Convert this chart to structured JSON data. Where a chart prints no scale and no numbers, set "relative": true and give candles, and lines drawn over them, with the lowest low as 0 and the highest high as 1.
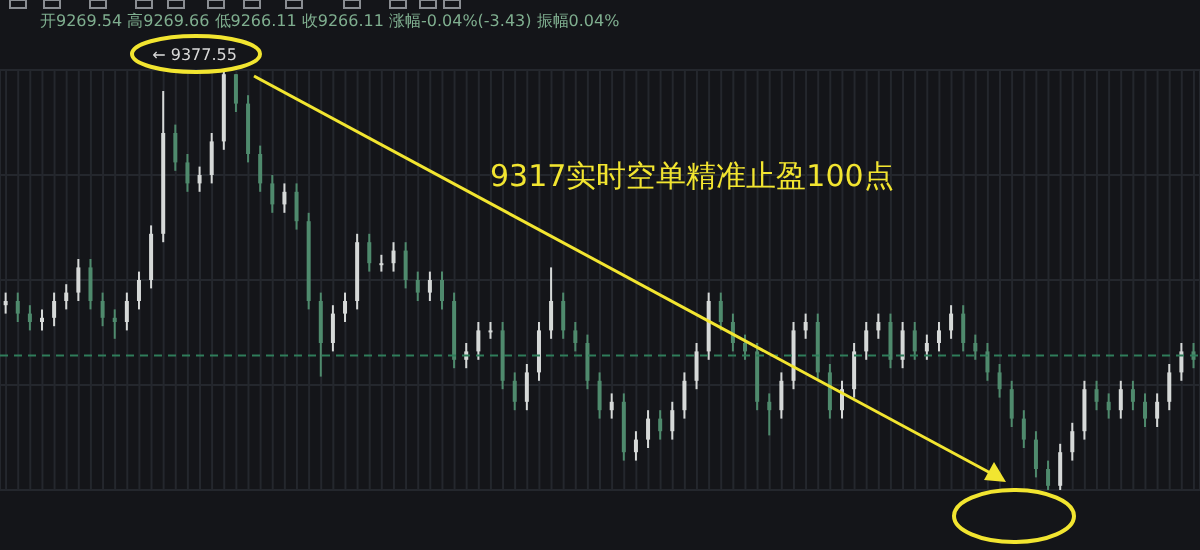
{
  "chart_data": {
    "type": "candlestick",
    "relative": true,
    "subtitle": "开9269.54 高9269.66 低9266.11 收9266.11 涨幅-0.04%(-3.43) 振幅0.04%",
    "annotations": [
      "← 9377.55",
      "9317实时空单精准止盈100点"
    ],
    "colors": [
      "#d6d9d8",
      "#4f8a6d",
      "#4f8a6d",
      "#d6d9d8",
      "#d6d9d8",
      "#d6d9d8",
      "#d6d9d8",
      "#4f8a6d",
      "#4f8a6d",
      "#4f8a6d",
      "#d6d9d8",
      "#d6d9d8",
      "#d6d9d8",
      "#d6d9d8",
      "#4f8a6d",
      "#4f8a6d",
      "#d6d9d8",
      "#d6d9d8",
      "#d6d9d8",
      "#4f8a6d",
      "#4f8a6d",
      "#4f8a6d",
      "#4f8a6d",
      "#d6d9d8",
      "#4f8a6d",
      "#4f8a6d",
      "#4f8a6d",
      "#d6d9d8",
      "#d6d9d8",
      "#d6d9d8",
      "#4f8a6d",
      "#d6d9d8",
      "#d6d9d8",
      "#4f8a6d",
      "#4f8a6d",
      "#d6d9d8",
      "#4f8a6d",
      "#4f8a6d",
      "#d6d9d8",
      "#d6d9d8",
      "#d6d9d8",
      "#4f8a6d",
      "#4f8a6d",
      "#d6d9d8",
      "#d6d9d8",
      "#d6d9d8",
      "#4f8a6d",
      "#4f8a6d",
      "#4f8a6d",
      "#4f8a6d",
      "#d6d9d8",
      "#4f8a6d",
      "#d6d9d8",
      "#d6d9d8",
      "#4f8a6d",
      "#d6d9d8",
      "#d6d9d8",
      "#d6d9d8",
      "#d6d9d8",
      "#4f8a6d",
      "#4f8a6d",
      "#4f8a6d",
      "#4f8a6d",
      "#4f8a6d",
      "#d6d9d8",
      "#d6d9d8",
      "#d6d9d8",
      "#4f8a6d",
      "#4f8a6d",
      "#d6d9d8",
      "#d6d9d8",
      "#d6d9d8",
      "#d6d9d8",
      "#4f8a6d",
      "#d6d9d8",
      "#4f8a6d",
      "#d6d9d8",
      "#d6d9d8",
      "#d6d9d8",
      "#4f8a6d",
      "#4f8a6d",
      "#4f8a6d",
      "#4f8a6d",
      "#4f8a6d",
      "#4f8a6d",
      "#4f8a6d",
      "#4f8a6d",
      "#d6d9d8",
      "#d6d9d8",
      "#d6d9d8",
      "#4f8a6d",
      "#4f8a6d",
      "#d6d9d8",
      "#4f8a6d",
      "#4f8a6d",
      "#d6d9d8",
      "#d6d9d8",
      "#d6d9d8",
      "#4f8a6d"
    ],
    "grid": true,
    "tick_labels": false,
    "ref_lines": [
      {
        "axis": "y",
        "value": 0.32,
        "color": "#2f7d5a",
        "line_style": "dashed"
      }
    ],
    "categories": [
      null,
      null,
      null,
      null,
      null,
      null,
      null,
      null,
      null,
      null,
      null,
      null,
      null,
      null,
      null,
      null,
      null,
      null,
      null,
      null,
      null,
      null,
      null,
      null,
      null,
      null,
      null,
      null,
      null,
      null,
      null,
      null,
      null,
      null,
      null,
      null,
      null,
      null,
      null,
      null,
      null,
      null,
      null,
      null,
      null,
      null,
      null,
      null,
      null,
      null,
      null,
      null,
      null,
      null,
      null,
      null,
      null,
      null,
      null,
      null,
      null,
      null,
      null,
      null,
      null,
      null,
      null,
      null,
      null,
      null,
      null,
      null,
      null,
      null,
      null,
      null,
      null,
      null,
      null,
      null,
      null,
      null,
      null,
      null,
      null,
      null,
      null,
      null,
      null,
      null,
      null,
      null,
      null,
      null,
      null,
      null,
      null,
      null,
      null
    ],
    "ohlc": [
      [
        0.44,
        0.47,
        0.42,
        0.45
      ],
      [
        0.45,
        0.47,
        0.4,
        0.42
      ],
      [
        0.42,
        0.44,
        0.38,
        0.4
      ],
      [
        0.4,
        0.43,
        0.38,
        0.41
      ],
      [
        0.41,
        0.47,
        0.39,
        0.45
      ],
      [
        0.45,
        0.49,
        0.43,
        0.47
      ],
      [
        0.47,
        0.55,
        0.45,
        0.53
      ],
      [
        0.53,
        0.55,
        0.43,
        0.45
      ],
      [
        0.45,
        0.47,
        0.39,
        0.41
      ],
      [
        0.41,
        0.43,
        0.36,
        0.4
      ],
      [
        0.4,
        0.47,
        0.38,
        0.45
      ],
      [
        0.45,
        0.52,
        0.43,
        0.5
      ],
      [
        0.5,
        0.63,
        0.48,
        0.61
      ],
      [
        0.61,
        0.95,
        0.59,
        0.85
      ],
      [
        0.85,
        0.87,
        0.76,
        0.78
      ],
      [
        0.78,
        0.8,
        0.71,
        0.73
      ],
      [
        0.73,
        0.77,
        0.71,
        0.75
      ],
      [
        0.75,
        0.85,
        0.73,
        0.83
      ],
      [
        0.83,
        1,
        0.81,
        0.99
      ],
      [
        0.99,
        0.99,
        0.9,
        0.92
      ],
      [
        0.92,
        0.94,
        0.78,
        0.8
      ],
      [
        0.8,
        0.82,
        0.71,
        0.73
      ],
      [
        0.73,
        0.75,
        0.66,
        0.68
      ],
      [
        0.68,
        0.73,
        0.66,
        0.71
      ],
      [
        0.71,
        0.73,
        0.62,
        0.64
      ],
      [
        0.64,
        0.66,
        0.43,
        0.45
      ],
      [
        0.45,
        0.47,
        0.27,
        0.35
      ],
      [
        0.35,
        0.44,
        0.33,
        0.42
      ],
      [
        0.42,
        0.47,
        0.4,
        0.45
      ],
      [
        0.45,
        0.61,
        0.43,
        0.59
      ],
      [
        0.59,
        0.61,
        0.52,
        0.54
      ],
      [
        0.54,
        0.56,
        0.52,
        0.54
      ],
      [
        0.54,
        0.59,
        0.52,
        0.57
      ],
      [
        0.57,
        0.59,
        0.48,
        0.5
      ],
      [
        0.5,
        0.52,
        0.45,
        0.47
      ],
      [
        0.47,
        0.52,
        0.45,
        0.5
      ],
      [
        0.5,
        0.52,
        0.43,
        0.45
      ],
      [
        0.45,
        0.47,
        0.29,
        0.31
      ],
      [
        0.31,
        0.35,
        0.29,
        0.33
      ],
      [
        0.33,
        0.4,
        0.31,
        0.38
      ],
      [
        0.38,
        0.4,
        0.36,
        0.38
      ],
      [
        0.38,
        0.4,
        0.24,
        0.26
      ],
      [
        0.26,
        0.28,
        0.19,
        0.21
      ],
      [
        0.21,
        0.3,
        0.19,
        0.28
      ],
      [
        0.28,
        0.4,
        0.26,
        0.38
      ],
      [
        0.38,
        0.53,
        0.36,
        0.45
      ],
      [
        0.45,
        0.47,
        0.36,
        0.38
      ],
      [
        0.38,
        0.4,
        0.33,
        0.35
      ],
      [
        0.35,
        0.37,
        0.24,
        0.26
      ],
      [
        0.26,
        0.28,
        0.17,
        0.19
      ],
      [
        0.19,
        0.23,
        0.17,
        0.21
      ],
      [
        0.21,
        0.23,
        0.07,
        0.09
      ],
      [
        0.09,
        0.14,
        0.07,
        0.12
      ],
      [
        0.12,
        0.19,
        0.1,
        0.17
      ],
      [
        0.17,
        0.19,
        0.12,
        0.14
      ],
      [
        0.14,
        0.21,
        0.12,
        0.19
      ],
      [
        0.19,
        0.28,
        0.17,
        0.26
      ],
      [
        0.26,
        0.35,
        0.24,
        0.33
      ],
      [
        0.33,
        0.47,
        0.31,
        0.45
      ],
      [
        0.45,
        0.47,
        0.38,
        0.4
      ],
      [
        0.4,
        0.42,
        0.33,
        0.35
      ],
      [
        0.35,
        0.37,
        0.31,
        0.33
      ],
      [
        0.33,
        0.35,
        0.19,
        0.21
      ],
      [
        0.21,
        0.23,
        0.13,
        0.19
      ],
      [
        0.19,
        0.28,
        0.17,
        0.26
      ],
      [
        0.26,
        0.4,
        0.24,
        0.38
      ],
      [
        0.38,
        0.42,
        0.36,
        0.4
      ],
      [
        0.4,
        0.42,
        0.26,
        0.28
      ],
      [
        0.28,
        0.3,
        0.17,
        0.19
      ],
      [
        0.19,
        0.26,
        0.17,
        0.24
      ],
      [
        0.24,
        0.35,
        0.22,
        0.33
      ],
      [
        0.33,
        0.4,
        0.31,
        0.38
      ],
      [
        0.38,
        0.42,
        0.36,
        0.4
      ],
      [
        0.4,
        0.42,
        0.29,
        0.31
      ],
      [
        0.31,
        0.4,
        0.29,
        0.38
      ],
      [
        0.38,
        0.4,
        0.31,
        0.33
      ],
      [
        0.33,
        0.37,
        0.31,
        0.35
      ],
      [
        0.35,
        0.4,
        0.33,
        0.38
      ],
      [
        0.38,
        0.44,
        0.36,
        0.42
      ],
      [
        0.42,
        0.44,
        0.33,
        0.35
      ],
      [
        0.35,
        0.37,
        0.31,
        0.33
      ],
      [
        0.33,
        0.35,
        0.26,
        0.28
      ],
      [
        0.28,
        0.3,
        0.22,
        0.24
      ],
      [
        0.24,
        0.26,
        0.15,
        0.17
      ],
      [
        0.17,
        0.19,
        0.1,
        0.12
      ],
      [
        0.12,
        0.14,
        0.03,
        0.05
      ],
      [
        0.05,
        0.07,
        0,
        0.01
      ],
      [
        0.01,
        0.11,
        0,
        0.09
      ],
      [
        0.09,
        0.16,
        0.07,
        0.14
      ],
      [
        0.14,
        0.26,
        0.12,
        0.24
      ],
      [
        0.24,
        0.26,
        0.19,
        0.21
      ],
      [
        0.21,
        0.23,
        0.17,
        0.19
      ],
      [
        0.19,
        0.26,
        0.17,
        0.24
      ],
      [
        0.24,
        0.26,
        0.19,
        0.21
      ],
      [
        0.21,
        0.23,
        0.15,
        0.17
      ],
      [
        0.17,
        0.23,
        0.15,
        0.21
      ],
      [
        0.21,
        0.3,
        0.19,
        0.28
      ],
      [
        0.28,
        0.35,
        0.26,
        0.33
      ],
      [
        0.33,
        0.35,
        0.29,
        0.31
      ]
    ]
  }
}
